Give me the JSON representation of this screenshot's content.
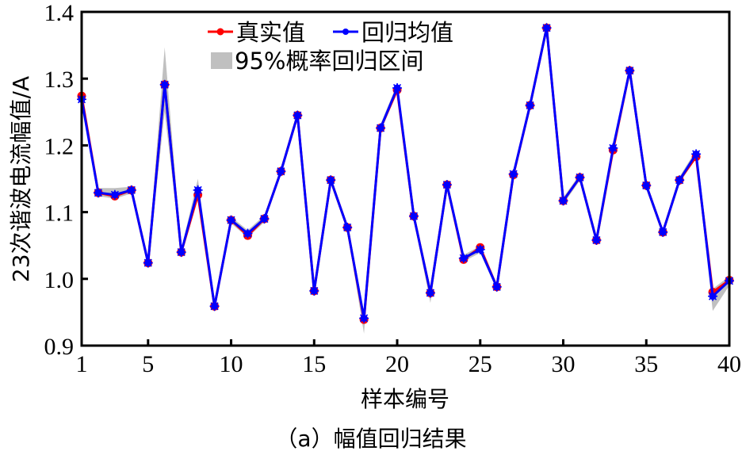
{
  "chart_data": {
    "type": "line",
    "title": "",
    "caption": "（a）幅值回归结果",
    "xlabel": "样本编号",
    "ylabel": "23次谐波电流幅值/A",
    "xlim": [
      1,
      40
    ],
    "ylim": [
      0.9,
      1.4
    ],
    "xticks": [
      1,
      5,
      10,
      15,
      20,
      25,
      30,
      35,
      40
    ],
    "xtick_labels": [
      "1",
      "5",
      "10",
      "15",
      "20",
      "25",
      "30",
      "35",
      "40"
    ],
    "yticks": [
      0.9,
      1.0,
      1.1,
      1.2,
      1.3,
      1.4
    ],
    "ytick_labels": [
      "0.9",
      "1.0",
      "1.1",
      "1.2",
      "1.3",
      "1.4"
    ],
    "grid": false,
    "legend_position": "upper center",
    "x": [
      1,
      2,
      3,
      4,
      5,
      6,
      7,
      8,
      9,
      10,
      11,
      12,
      13,
      14,
      15,
      16,
      17,
      18,
      19,
      20,
      21,
      22,
      23,
      24,
      25,
      26,
      27,
      28,
      29,
      30,
      31,
      32,
      33,
      34,
      35,
      36,
      37,
      38,
      39,
      40
    ],
    "series": [
      {
        "name": "真实值",
        "color": "#ff0000",
        "marker": "circle",
        "values": [
          1.274,
          1.129,
          1.124,
          1.133,
          1.024,
          1.291,
          1.04,
          1.126,
          0.959,
          1.088,
          1.065,
          1.09,
          1.161,
          1.245,
          0.982,
          1.148,
          1.077,
          0.939,
          1.226,
          1.283,
          1.094,
          0.979,
          1.141,
          1.029,
          1.047,
          0.988,
          1.156,
          1.26,
          1.376,
          1.117,
          1.152,
          1.058,
          1.193,
          1.312,
          1.14,
          1.07,
          1.148,
          1.183,
          0.98,
          0.998
        ]
      },
      {
        "name": "回归均值",
        "color": "#0000ff",
        "marker": "star",
        "values": [
          1.269,
          1.129,
          1.126,
          1.133,
          1.024,
          1.291,
          1.04,
          1.133,
          0.959,
          1.088,
          1.068,
          1.09,
          1.161,
          1.245,
          0.982,
          1.148,
          1.077,
          0.941,
          1.226,
          1.286,
          1.094,
          0.979,
          1.141,
          1.031,
          1.044,
          0.988,
          1.157,
          1.26,
          1.376,
          1.117,
          1.152,
          1.058,
          1.196,
          1.312,
          1.14,
          1.07,
          1.148,
          1.187,
          0.974,
          0.997
        ]
      },
      {
        "name": "95%概率回归区间",
        "color": "#c0c0c0",
        "type": "band",
        "lower": [
          1.262,
          1.124,
          1.12,
          1.128,
          1.019,
          1.25,
          1.035,
          1.12,
          0.954,
          1.083,
          1.062,
          1.085,
          1.156,
          1.238,
          0.977,
          1.142,
          1.072,
          0.918,
          1.22,
          1.28,
          1.089,
          0.964,
          1.136,
          1.026,
          1.039,
          0.983,
          1.151,
          1.254,
          1.37,
          1.112,
          1.147,
          1.053,
          1.19,
          1.305,
          1.135,
          1.065,
          1.143,
          1.181,
          0.952,
          0.99
        ],
        "upper": [
          1.276,
          1.136,
          1.136,
          1.138,
          1.029,
          1.347,
          1.045,
          1.15,
          0.964,
          1.093,
          1.073,
          1.095,
          1.166,
          1.252,
          0.987,
          1.154,
          1.082,
          0.946,
          1.232,
          1.292,
          1.099,
          0.985,
          1.146,
          1.036,
          1.049,
          0.993,
          1.163,
          1.266,
          1.385,
          1.122,
          1.157,
          1.063,
          1.202,
          1.32,
          1.145,
          1.075,
          1.153,
          1.193,
          0.985,
          1.004
        ]
      }
    ]
  },
  "legend": {
    "items": [
      {
        "label": "真实值",
        "color": "#ff0000"
      },
      {
        "label": "回归均值",
        "color": "#0000ff"
      },
      {
        "label": "95%概率回归区间",
        "color": "#c0c0c0"
      }
    ]
  },
  "labels": {
    "xlabel": "样本编号",
    "ylabel": "23次谐波电流幅值/A",
    "caption": "（a）幅值回归结果"
  }
}
